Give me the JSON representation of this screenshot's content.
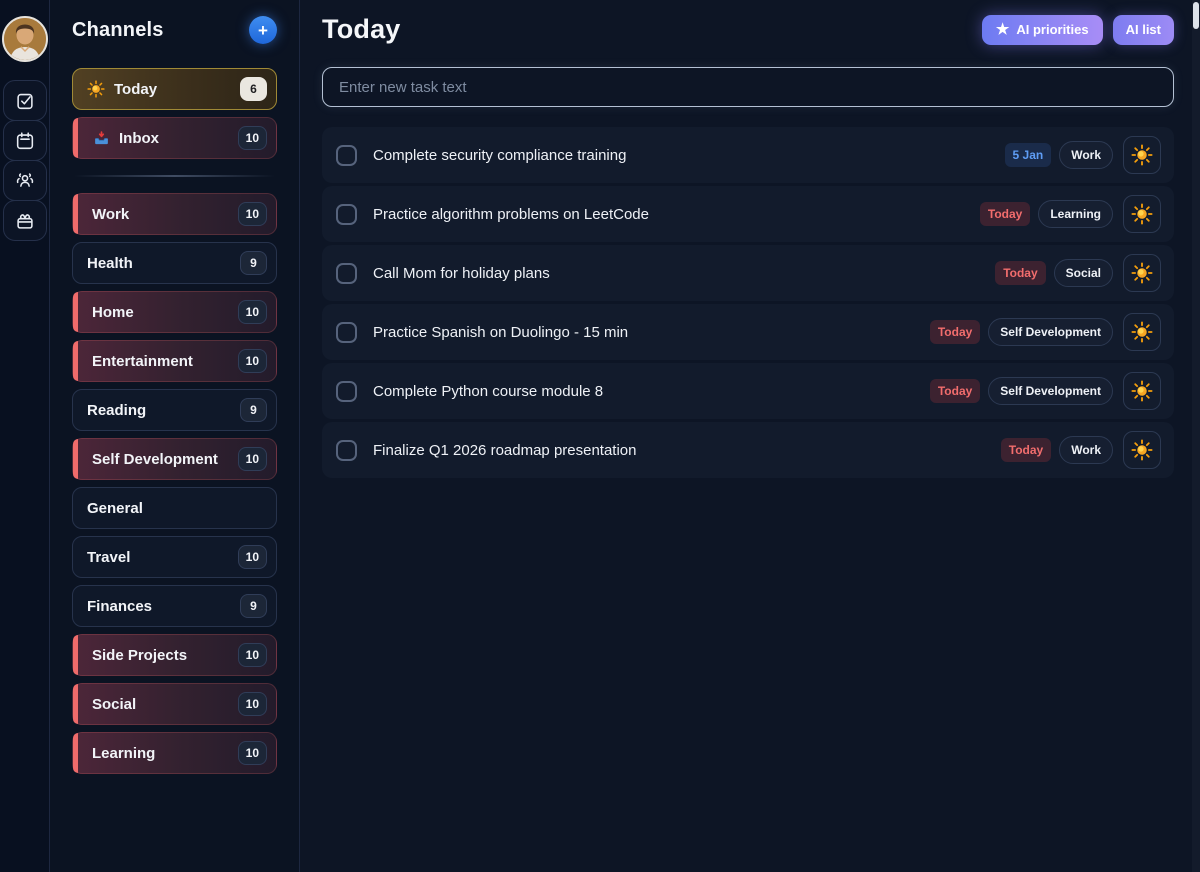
{
  "sidebar": {
    "title": "Channels",
    "add_button_label": "+",
    "items": [
      {
        "label": "Today",
        "count": "6",
        "variant": "today",
        "icon": "sun"
      },
      {
        "label": "Inbox",
        "count": "10",
        "variant": "accent",
        "icon": "inbox"
      },
      {
        "label": "Work",
        "count": "10",
        "variant": "accent",
        "icon": null
      },
      {
        "label": "Health",
        "count": "9",
        "variant": "plain",
        "icon": null
      },
      {
        "label": "Home",
        "count": "10",
        "variant": "accent",
        "icon": null
      },
      {
        "label": "Entertainment",
        "count": "10",
        "variant": "accent",
        "icon": null
      },
      {
        "label": "Reading",
        "count": "9",
        "variant": "plain",
        "icon": null
      },
      {
        "label": "Self Development",
        "count": "10",
        "variant": "accent",
        "icon": null
      },
      {
        "label": "General",
        "count": null,
        "variant": "plain",
        "icon": null
      },
      {
        "label": "Travel",
        "count": "10",
        "variant": "plain",
        "icon": null
      },
      {
        "label": "Finances",
        "count": "9",
        "variant": "plain",
        "icon": null
      },
      {
        "label": "Side Projects",
        "count": "10",
        "variant": "accent",
        "icon": null
      },
      {
        "label": "Social",
        "count": "10",
        "variant": "accent",
        "icon": null
      },
      {
        "label": "Learning",
        "count": "10",
        "variant": "accent",
        "icon": null
      }
    ],
    "divider_after_index": 1
  },
  "rail": {
    "icons": [
      "tasks-icon",
      "calendar-icon",
      "people-icon",
      "gift-icon"
    ]
  },
  "main": {
    "title": "Today",
    "ai_priorities_label": "AI priorities",
    "ai_list_label": "AI list",
    "input_placeholder": "Enter new task text",
    "tasks": [
      {
        "text": "Complete security compliance training",
        "badge": "5 Jan",
        "badge_type": "date",
        "tag": "Work"
      },
      {
        "text": "Practice algorithm problems on LeetCode",
        "badge": "Today",
        "badge_type": "today",
        "tag": "Learning"
      },
      {
        "text": "Call Mom for holiday plans",
        "badge": "Today",
        "badge_type": "today",
        "tag": "Social"
      },
      {
        "text": "Practice Spanish on Duolingo - 15 min",
        "badge": "Today",
        "badge_type": "today",
        "tag": "Self Development"
      },
      {
        "text": "Complete Python course module 8",
        "badge": "Today",
        "badge_type": "today",
        "tag": "Self Development"
      },
      {
        "text": "Finalize Q1 2026 roadmap presentation",
        "badge": "Today",
        "badge_type": "today",
        "tag": "Work"
      }
    ]
  },
  "colors": {
    "accent_red": "#ef6b6b",
    "today_gold_border": "#a08a36",
    "add_button_blue": "#2f7fe8",
    "ai_gradient_start": "#6d7bf2",
    "ai_gradient_end": "#a88df6",
    "date_badge_text": "#5f9df5",
    "today_badge_text": "#f26d6d",
    "page_background": "#0d1525",
    "row_background": "#121b2c"
  }
}
